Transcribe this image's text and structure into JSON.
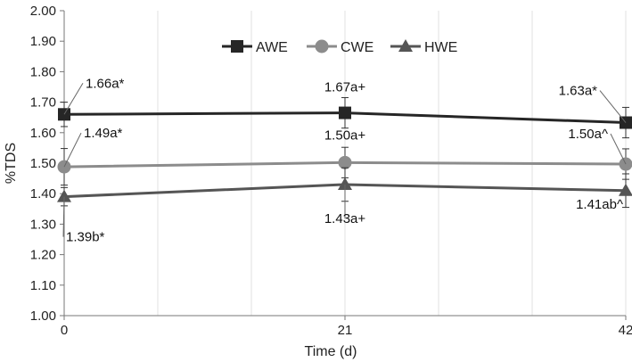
{
  "chart_data": {
    "type": "line",
    "title": "",
    "xlabel": "Time (d)",
    "ylabel": "%TDS",
    "x": [
      0,
      21,
      42
    ],
    "x_tick_labels": [
      "0",
      "21",
      "42"
    ],
    "xlim": [
      0,
      42
    ],
    "ylim": [
      1.0,
      2.0
    ],
    "y_tick_step": 0.1,
    "y_tick_labels": [
      "1.00",
      "1.10",
      "1.20",
      "1.30",
      "1.40",
      "1.50",
      "1.60",
      "1.70",
      "1.80",
      "1.90",
      "2.00"
    ],
    "grid": "vertical minor lines only",
    "legend_position": "top-center",
    "series": [
      {
        "name": "AWE",
        "marker": "square",
        "color": "#262626",
        "values": [
          1.66,
          1.665,
          1.633
        ],
        "error": [
          0.04,
          0.05,
          0.05
        ],
        "labels": [
          "1.66a*",
          "1.67a+",
          "1.63a*"
        ]
      },
      {
        "name": "CWE",
        "marker": "circle",
        "color": "#8c8c8c",
        "values": [
          1.488,
          1.502,
          1.497
        ],
        "error": [
          0.06,
          0.05,
          0.05
        ],
        "labels": [
          "1.49a*",
          "1.50a+",
          "1.50a^"
        ]
      },
      {
        "name": "HWE",
        "marker": "triangle",
        "color": "#555555",
        "values": [
          1.39,
          1.43,
          1.41
        ],
        "error": [
          0.03,
          0.055,
          0.055
        ],
        "labels": [
          "1.39b*",
          "1.43a+",
          "1.41ab^"
        ]
      }
    ]
  }
}
